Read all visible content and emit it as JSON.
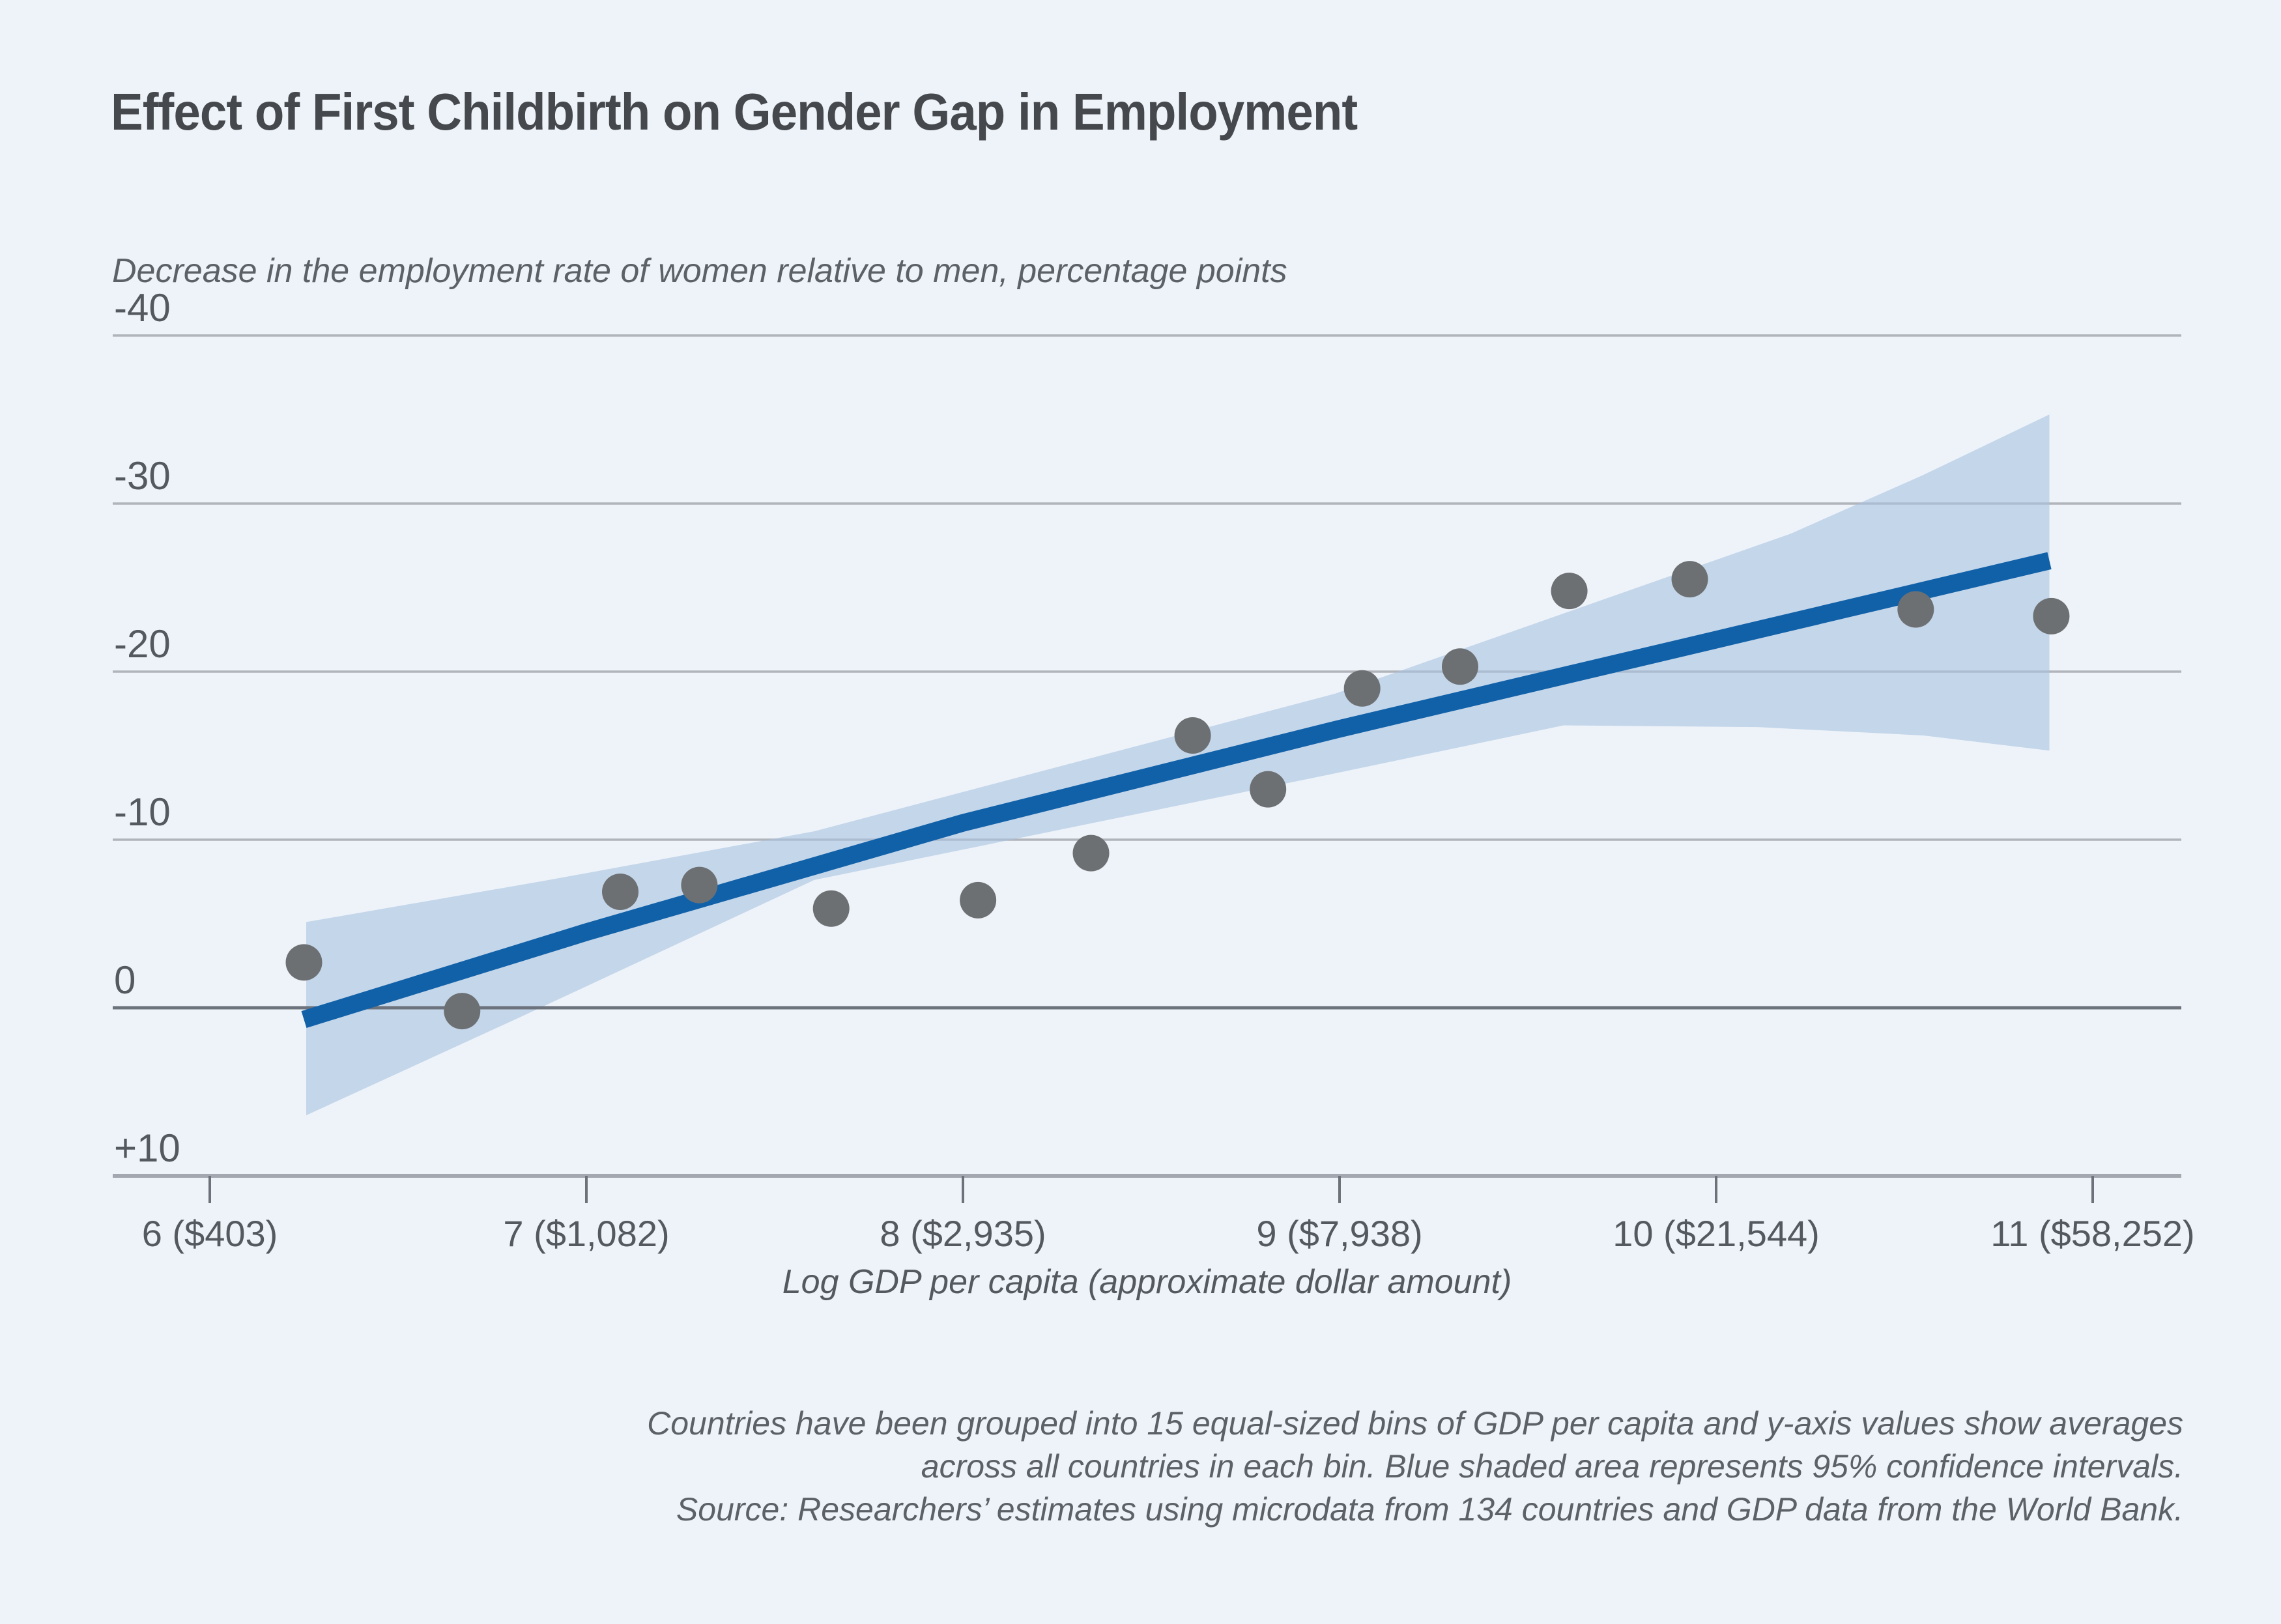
{
  "header": {
    "title": "Effect of First Childbirth on Gender Gap in Employment",
    "y_axis_note": "Decrease in the employment rate of women relative to men, percentage points"
  },
  "chart_data": {
    "type": "scatter",
    "title": "Effect of First Childbirth on Gender Gap in Employment",
    "ylabel": "Decrease in the employment rate of women relative to men, percentage points",
    "xlabel": "Log GDP per capita (approximate dollar amount)",
    "xlim": [
      5.74,
      11.24
    ],
    "ylim": [
      -40,
      10
    ],
    "y_axis_direction": "negative values plotted upward",
    "grid": "horizontal only",
    "legend_position": "none",
    "x_ticks": [
      {
        "value": 6,
        "label": "6 ($403)"
      },
      {
        "value": 7,
        "label": "7 ($1,082)"
      },
      {
        "value": 8,
        "label": "8 ($2,935)"
      },
      {
        "value": 9,
        "label": "9 ($7,938)"
      },
      {
        "value": 10,
        "label": "10 ($21,544)"
      },
      {
        "value": 11,
        "label": "11 ($58,252)"
      }
    ],
    "y_ticks": [
      {
        "value": -40,
        "label": "-40"
      },
      {
        "value": -30,
        "label": "-30"
      },
      {
        "value": -20,
        "label": "-20"
      },
      {
        "value": -10,
        "label": "-10"
      },
      {
        "value": 0,
        "label": "0"
      },
      {
        "value": 10,
        "label": "+10"
      }
    ],
    "points": [
      [
        6.25,
        -2.7
      ],
      [
        6.67,
        0.2
      ],
      [
        7.09,
        -6.9
      ],
      [
        7.3,
        -7.3
      ],
      [
        7.65,
        -5.9
      ],
      [
        8.04,
        -6.4
      ],
      [
        8.34,
        -9.2
      ],
      [
        8.61,
        -16.2
      ],
      [
        8.81,
        -13.0
      ],
      [
        9.06,
        -19.0
      ],
      [
        9.32,
        -20.3
      ],
      [
        9.61,
        -24.8
      ],
      [
        9.93,
        -25.5
      ],
      [
        10.53,
        -23.7
      ],
      [
        10.89,
        -23.3
      ]
    ],
    "trend_line": [
      [
        6.25,
        0.7
      ],
      [
        7.0,
        -4.5
      ],
      [
        8.0,
        -11.0
      ],
      [
        9.0,
        -16.6
      ],
      [
        10.0,
        -21.9
      ],
      [
        10.885,
        -26.6
      ]
    ],
    "confidence_band": {
      "note": "95% confidence intervals",
      "top": [
        [
          6.256,
          -5.1
        ],
        [
          6.9,
          -7.6
        ],
        [
          7.605,
          -10.5
        ],
        [
          8.99,
          -18.7
        ],
        [
          10.197,
          -28.2
        ],
        [
          10.55,
          -31.7
        ],
        [
          10.885,
          -35.3
        ]
      ],
      "bottom": [
        [
          6.256,
          6.4
        ],
        [
          6.83,
          0.5
        ],
        [
          7.605,
          -7.6
        ],
        [
          8.63,
          -12.3
        ],
        [
          9.0,
          -14.0
        ],
        [
          9.595,
          -16.8
        ],
        [
          10.11,
          -16.7
        ],
        [
          10.55,
          -16.2
        ],
        [
          10.885,
          -15.3
        ]
      ]
    },
    "colors": {
      "background": "#eef3f9",
      "band": "#a9c4e0",
      "line": "#1161a9",
      "points": "#6d7073",
      "gridline": "#b0b4bb",
      "zero_line": "#6d737c",
      "axis_line": "#a2a7b0",
      "tick": "#6c717a",
      "tick_label": "#54595f",
      "title_text": "#45494e"
    }
  },
  "footer": {
    "line1": "Countries have been grouped into 15 equal-sized bins of GDP per capita and y-axis values show averages",
    "line2": "across all countries in each bin. Blue shaded area represents 95% confidence intervals.",
    "line3": "Source: Researchers’ estimates using microdata from 134 countries and GDP data from the World Bank."
  }
}
